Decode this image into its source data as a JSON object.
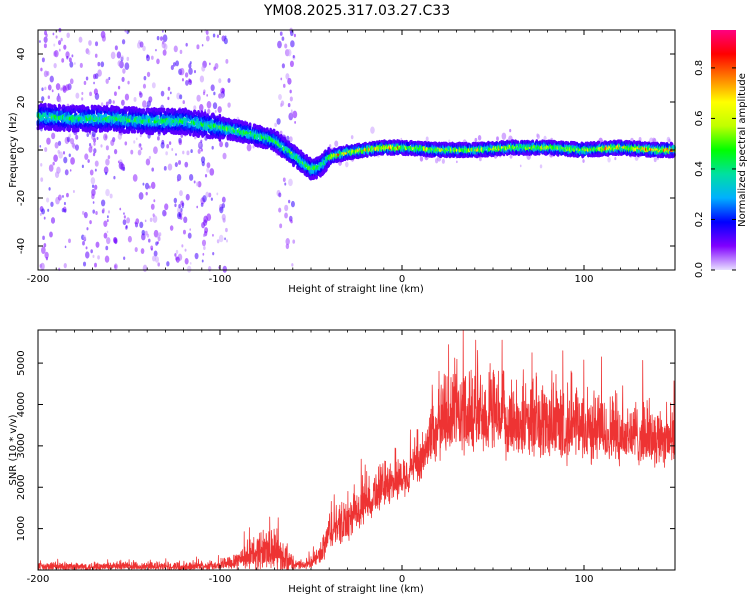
{
  "title": "YM08.2025.317.03.27.C33",
  "chart_data": [
    {
      "type": "heatmap",
      "name": "spectrogram",
      "xlabel": "Height of straight line (km)",
      "ylabel": "Frequency (Hz)",
      "xlim": [
        -200,
        150
      ],
      "ylim": [
        -50,
        50
      ],
      "xticks": [
        -200,
        -100,
        0,
        100
      ],
      "yticks": [
        -40,
        -20,
        0,
        20,
        40
      ],
      "colorbar": {
        "label": "Normalized spectral amplitude",
        "range": [
          0,
          0.95
        ],
        "ticks": [
          "0.0",
          "0.2",
          "0.4",
          "0.6",
          "0.8"
        ],
        "colors": [
          "#e8e0ff",
          "#8000ff",
          "#0000ff",
          "#00b0ff",
          "#00e0a0",
          "#00ff00",
          "#c0ff00",
          "#ffff00",
          "#ff8000",
          "#ff0000",
          "#ff0080"
        ]
      },
      "ridge": {
        "x": [
          -200,
          -180,
          -160,
          -140,
          -120,
          -105,
          -90,
          -80,
          -70,
          -60,
          -50,
          -45,
          -40,
          -30,
          -20,
          -10,
          0,
          20,
          40,
          60,
          80,
          100,
          120,
          140,
          150
        ],
        "y": [
          14,
          13,
          13,
          12,
          12,
          10,
          8,
          6,
          4,
          -2,
          -8,
          -7,
          -3,
          -1,
          0,
          1,
          1,
          0,
          0,
          1,
          1,
          0,
          1,
          0,
          0
        ]
      },
      "noise_bands": [
        [
          -200,
          -185
        ],
        [
          -175,
          -150
        ],
        [
          -145,
          -130
        ],
        [
          -125,
          -115
        ],
        [
          -110,
          -95
        ],
        [
          -68,
          -58
        ]
      ]
    },
    {
      "type": "line",
      "name": "snr",
      "xlabel": "Height of straight line (km)",
      "ylabel": "SNR (10 * v/v)",
      "xlim": [
        -200,
        150
      ],
      "ylim": [
        0,
        5800
      ],
      "xticks": [
        -200,
        -100,
        0,
        100
      ],
      "yticks": [
        1000,
        2000,
        3000,
        4000,
        5000
      ],
      "color": "#ee3333",
      "envelope": {
        "x": [
          -200,
          -160,
          -120,
          -100,
          -90,
          -80,
          -72,
          -65,
          -58,
          -50,
          -44,
          -40,
          -30,
          -20,
          -10,
          0,
          10,
          15,
          20,
          25,
          30,
          40,
          60,
          80,
          100,
          120,
          150
        ],
        "base": [
          50,
          60,
          60,
          80,
          200,
          300,
          380,
          200,
          80,
          120,
          300,
          800,
          1000,
          1500,
          1900,
          2100,
          2400,
          3000,
          3300,
          3500,
          3600,
          3500,
          3400,
          3300,
          3200,
          3100,
          3000
        ],
        "amp": [
          200,
          200,
          200,
          220,
          500,
          900,
          1200,
          700,
          200,
          250,
          600,
          1000,
          1000,
          1000,
          1100,
          1000,
          1000,
          1600,
          2000,
          2200,
          2300,
          2100,
          2000,
          1900,
          1800,
          1600,
          1400
        ]
      }
    }
  ]
}
